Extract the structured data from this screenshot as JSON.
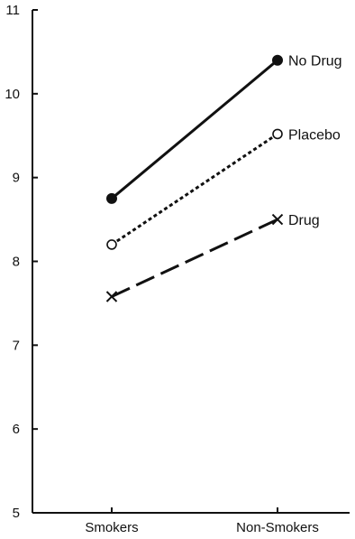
{
  "chart_data": {
    "type": "line",
    "title": "",
    "xlabel": "",
    "ylabel": "",
    "categories": [
      "Smokers",
      "Non-Smokers"
    ],
    "ylim": [
      5,
      11
    ],
    "yticks": [
      5,
      6,
      7,
      8,
      9,
      10,
      11
    ],
    "grid": false,
    "legend": "labels at line ends",
    "series": [
      {
        "name": "No Drug",
        "values": [
          8.75,
          10.4
        ],
        "marker": "filled-circle",
        "line_style": "solid",
        "color": "#111111"
      },
      {
        "name": "Placebo",
        "values": [
          8.2,
          9.52
        ],
        "marker": "open-circle",
        "line_style": "dotted",
        "color": "#111111"
      },
      {
        "name": "Drug",
        "values": [
          7.58,
          8.5
        ],
        "marker": "cross",
        "line_style": "dashed",
        "color": "#111111"
      }
    ]
  }
}
